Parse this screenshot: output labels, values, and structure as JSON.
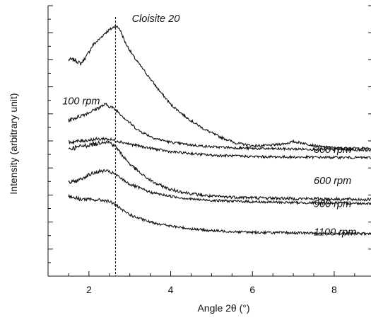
{
  "chart_data": {
    "type": "line",
    "title": "",
    "xlabel": "Angle 2θ (°)",
    "ylabel": "Intensity (arbitrary unit)",
    "xlim": [
      1,
      8.9
    ],
    "ylim": [
      0,
      10
    ],
    "x_ticks": [
      2,
      4,
      6,
      8
    ],
    "y_tick_labels": "none",
    "grid": false,
    "legend": "none",
    "reference_line": {
      "x": 2.65,
      "style": "dashed"
    },
    "annotations": [
      {
        "text": "Cloisite 20",
        "x": 3.05,
        "y": 9.4
      },
      {
        "text": "100 rpm",
        "x": 1.35,
        "y": 6.35
      },
      {
        "text": "300 rpm",
        "x": 7.5,
        "y": 4.55
      },
      {
        "text": "600 rpm",
        "x": 7.5,
        "y": 3.4
      },
      {
        "text": "900 rpm",
        "x": 7.5,
        "y": 2.55
      },
      {
        "text": "1100 rpm",
        "x": 7.5,
        "y": 1.5
      }
    ],
    "series": [
      {
        "name": "Cloisite 20",
        "noise": 0.045,
        "x": [
          1.5,
          1.65,
          1.8,
          1.95,
          2.1,
          2.25,
          2.4,
          2.55,
          2.65,
          2.75,
          2.9,
          3.1,
          3.4,
          3.7,
          4.0,
          4.4,
          4.8,
          5.2,
          5.6,
          6.0,
          6.4,
          6.8,
          7.0,
          7.2,
          7.6,
          8.0,
          8.4,
          8.9
        ],
        "y": [
          8.0,
          8.0,
          7.85,
          8.15,
          8.55,
          8.75,
          9.0,
          9.15,
          9.25,
          9.15,
          8.6,
          8.1,
          7.5,
          6.9,
          6.35,
          5.85,
          5.45,
          5.15,
          4.92,
          4.82,
          4.83,
          4.9,
          4.97,
          4.93,
          4.8,
          4.74,
          4.73,
          4.72
        ]
      },
      {
        "name": "100 rpm",
        "noise": 0.045,
        "x": [
          1.5,
          1.75,
          2.0,
          2.2,
          2.4,
          2.55,
          2.7,
          2.9,
          3.2,
          3.6,
          4.0,
          4.5,
          5.0,
          6.0,
          7.0,
          8.0,
          8.9
        ],
        "y": [
          5.75,
          5.9,
          6.05,
          6.2,
          6.35,
          6.25,
          6.1,
          5.8,
          5.4,
          5.1,
          4.95,
          4.85,
          4.78,
          4.72,
          4.7,
          4.68,
          4.66
        ]
      },
      {
        "name": "300 rpm",
        "noise": 0.045,
        "x": [
          1.5,
          1.8,
          2.1,
          2.4,
          2.7,
          3.0,
          3.5,
          4.0,
          5.0,
          6.0,
          7.0,
          8.0,
          8.9
        ],
        "y": [
          4.95,
          5.0,
          5.05,
          5.08,
          5.0,
          4.88,
          4.73,
          4.6,
          4.47,
          4.42,
          4.4,
          4.39,
          4.38
        ]
      },
      {
        "name": "600 rpm",
        "noise": 0.055,
        "x": [
          1.5,
          1.75,
          2.0,
          2.2,
          2.35,
          2.5,
          2.65,
          2.8,
          3.0,
          3.3,
          3.6,
          4.0,
          4.5,
          5.0,
          6.0,
          7.0,
          8.0,
          8.9
        ],
        "y": [
          4.7,
          4.78,
          4.85,
          4.9,
          4.98,
          4.95,
          4.8,
          4.5,
          4.15,
          3.75,
          3.45,
          3.2,
          3.05,
          2.95,
          2.9,
          2.87,
          2.85,
          2.83
        ]
      },
      {
        "name": "900 rpm",
        "noise": 0.045,
        "x": [
          1.5,
          1.75,
          2.0,
          2.2,
          2.4,
          2.6,
          2.8,
          3.0,
          3.5,
          4.0,
          4.5,
          5.0,
          6.0,
          7.0,
          8.0,
          8.9
        ],
        "y": [
          3.45,
          3.55,
          3.75,
          3.85,
          3.9,
          3.8,
          3.6,
          3.4,
          3.1,
          2.95,
          2.85,
          2.8,
          2.75,
          2.72,
          2.7,
          2.69
        ]
      },
      {
        "name": "1100 rpm",
        "noise": 0.045,
        "x": [
          1.5,
          1.8,
          2.1,
          2.4,
          2.6,
          2.8,
          3.1,
          3.5,
          4.0,
          4.5,
          5.0,
          5.5,
          6.0,
          7.0,
          8.0,
          8.9
        ],
        "y": [
          2.95,
          2.85,
          2.82,
          2.8,
          2.7,
          2.45,
          2.2,
          2.0,
          1.85,
          1.75,
          1.68,
          1.65,
          1.62,
          1.6,
          1.58,
          1.57
        ]
      }
    ]
  }
}
